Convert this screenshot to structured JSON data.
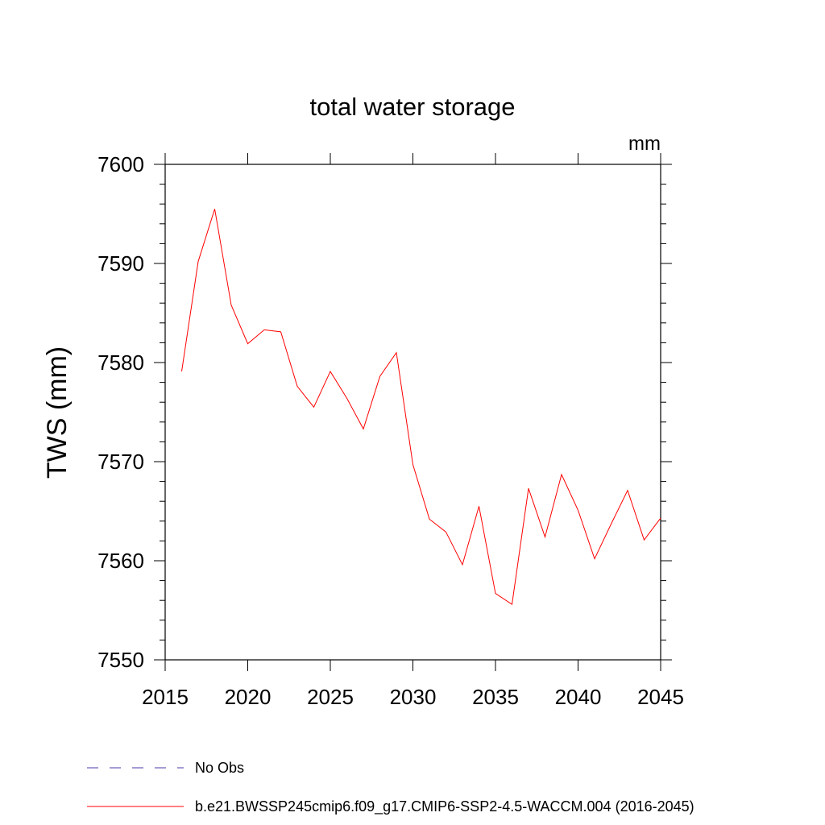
{
  "chart_data": {
    "type": "line",
    "title": "total water storage",
    "units": "mm",
    "ylabel": "TWS  (mm)",
    "xlabel": "",
    "xlim": [
      2015,
      2045
    ],
    "ylim": [
      7550,
      7600
    ],
    "x_ticks": [
      "2015",
      "2020",
      "2025",
      "2030",
      "2035",
      "2040",
      "2045"
    ],
    "y_ticks": [
      "7550",
      "7560",
      "7570",
      "7580",
      "7590",
      "7600"
    ],
    "grid": false,
    "legend_position": "bottom",
    "series": [
      {
        "name": "No Obs",
        "color": "#4a3aa8",
        "style": "dashed",
        "x": [],
        "values": []
      },
      {
        "name": "b.e21.BWSSP245cmip6.f09_g17.CMIP6-SSP2-4.5-WACCM.004 (2016-2045)",
        "color": "#ff0000",
        "style": "solid",
        "x": [
          2016,
          2017,
          2018,
          2019,
          2020,
          2021,
          2022,
          2023,
          2024,
          2025,
          2026,
          2027,
          2028,
          2029,
          2030,
          2031,
          2032,
          2033,
          2034,
          2035,
          2036,
          2037,
          2038,
          2039,
          2040,
          2041,
          2042,
          2043,
          2044,
          2045
        ],
        "values": [
          7579.1,
          7590.2,
          7595.5,
          7585.8,
          7581.9,
          7583.3,
          7583.1,
          7577.6,
          7575.5,
          7579.1,
          7576.4,
          7573.3,
          7578.6,
          7581.0,
          7569.7,
          7564.2,
          7562.9,
          7559.6,
          7565.5,
          7556.7,
          7555.6,
          7567.3,
          7562.4,
          7568.7,
          7565.1,
          7560.2,
          7563.7,
          7567.1,
          7562.1,
          7564.3
        ]
      }
    ]
  }
}
